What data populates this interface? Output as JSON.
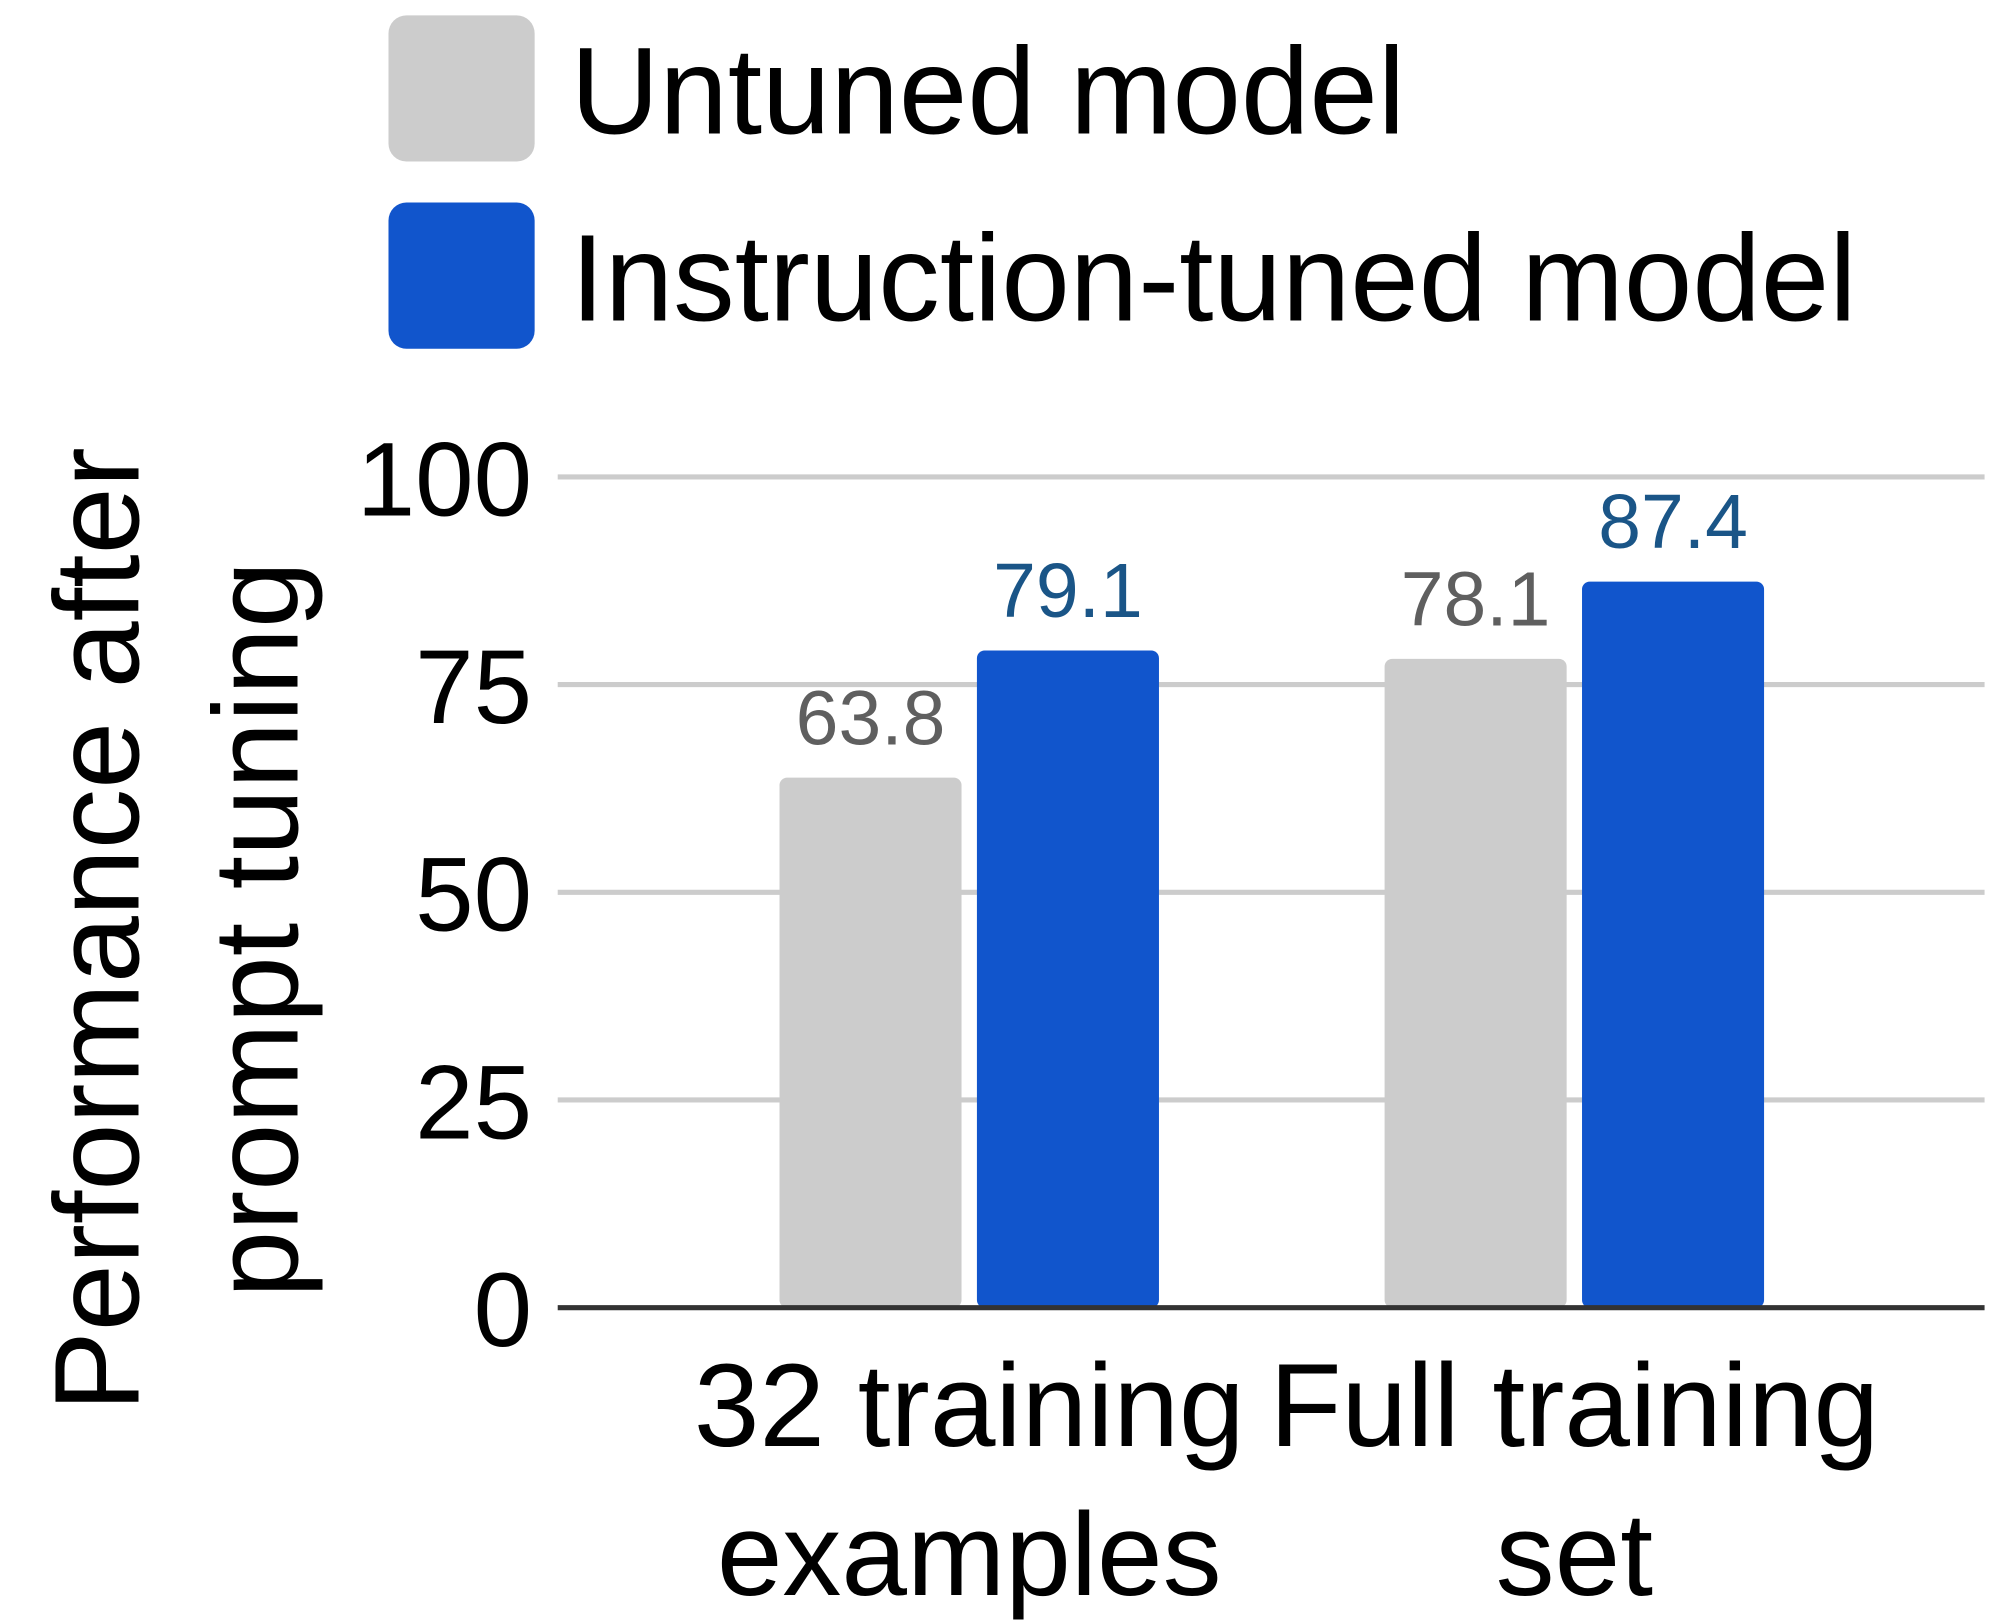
{
  "chart_data": {
    "type": "bar",
    "y_label": "Performance after prompt tuning",
    "categories": [
      "32 training examples",
      "Full training set"
    ],
    "series": [
      {
        "name": "Untuned model",
        "color": "#cccccc",
        "values": [
          63.8,
          78.1
        ]
      },
      {
        "name": "Instruction-tuned model",
        "color": "#1155cc",
        "values": [
          79.1,
          87.4
        ]
      }
    ],
    "ylim": [
      0,
      100
    ],
    "yticks": [
      0,
      25,
      50,
      75,
      100
    ],
    "grid": true,
    "legend": "top"
  }
}
